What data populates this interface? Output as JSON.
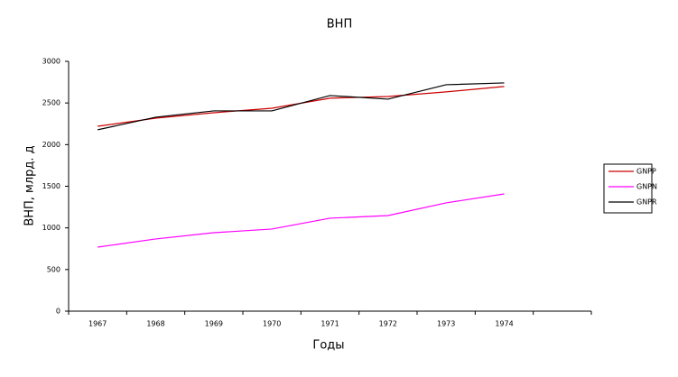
{
  "chart_data": {
    "type": "line",
    "title": "ВНП",
    "x_label": "Годы",
    "y_label": "ВНП, млрд. д",
    "categories": [
      "1967",
      "1968",
      "1969",
      "1970",
      "1971",
      "1972",
      "1973",
      "1974",
      null
    ],
    "series": [
      {
        "name": "GNPP",
        "color": "#cc0000",
        "values": [
          2220,
          2318,
          2383,
          2437,
          2557,
          2578,
          2633,
          2698,
          null
        ]
      },
      {
        "name": "GNPN",
        "color": "#ff00ff",
        "values": [
          769,
          867,
          942,
          986,
          1116,
          1148,
          1300,
          1408,
          null
        ]
      },
      {
        "name": "GNPR",
        "color": "#000000",
        "values": [
          2178,
          2329,
          2405,
          2405,
          2589,
          2546,
          2719,
          2741,
          null
        ]
      }
    ],
    "ylim": [
      0,
      3000
    ],
    "yticks": [
      0,
      500,
      1000,
      1500,
      2000,
      2500,
      3000
    ],
    "grid": false,
    "legend": "right"
  }
}
